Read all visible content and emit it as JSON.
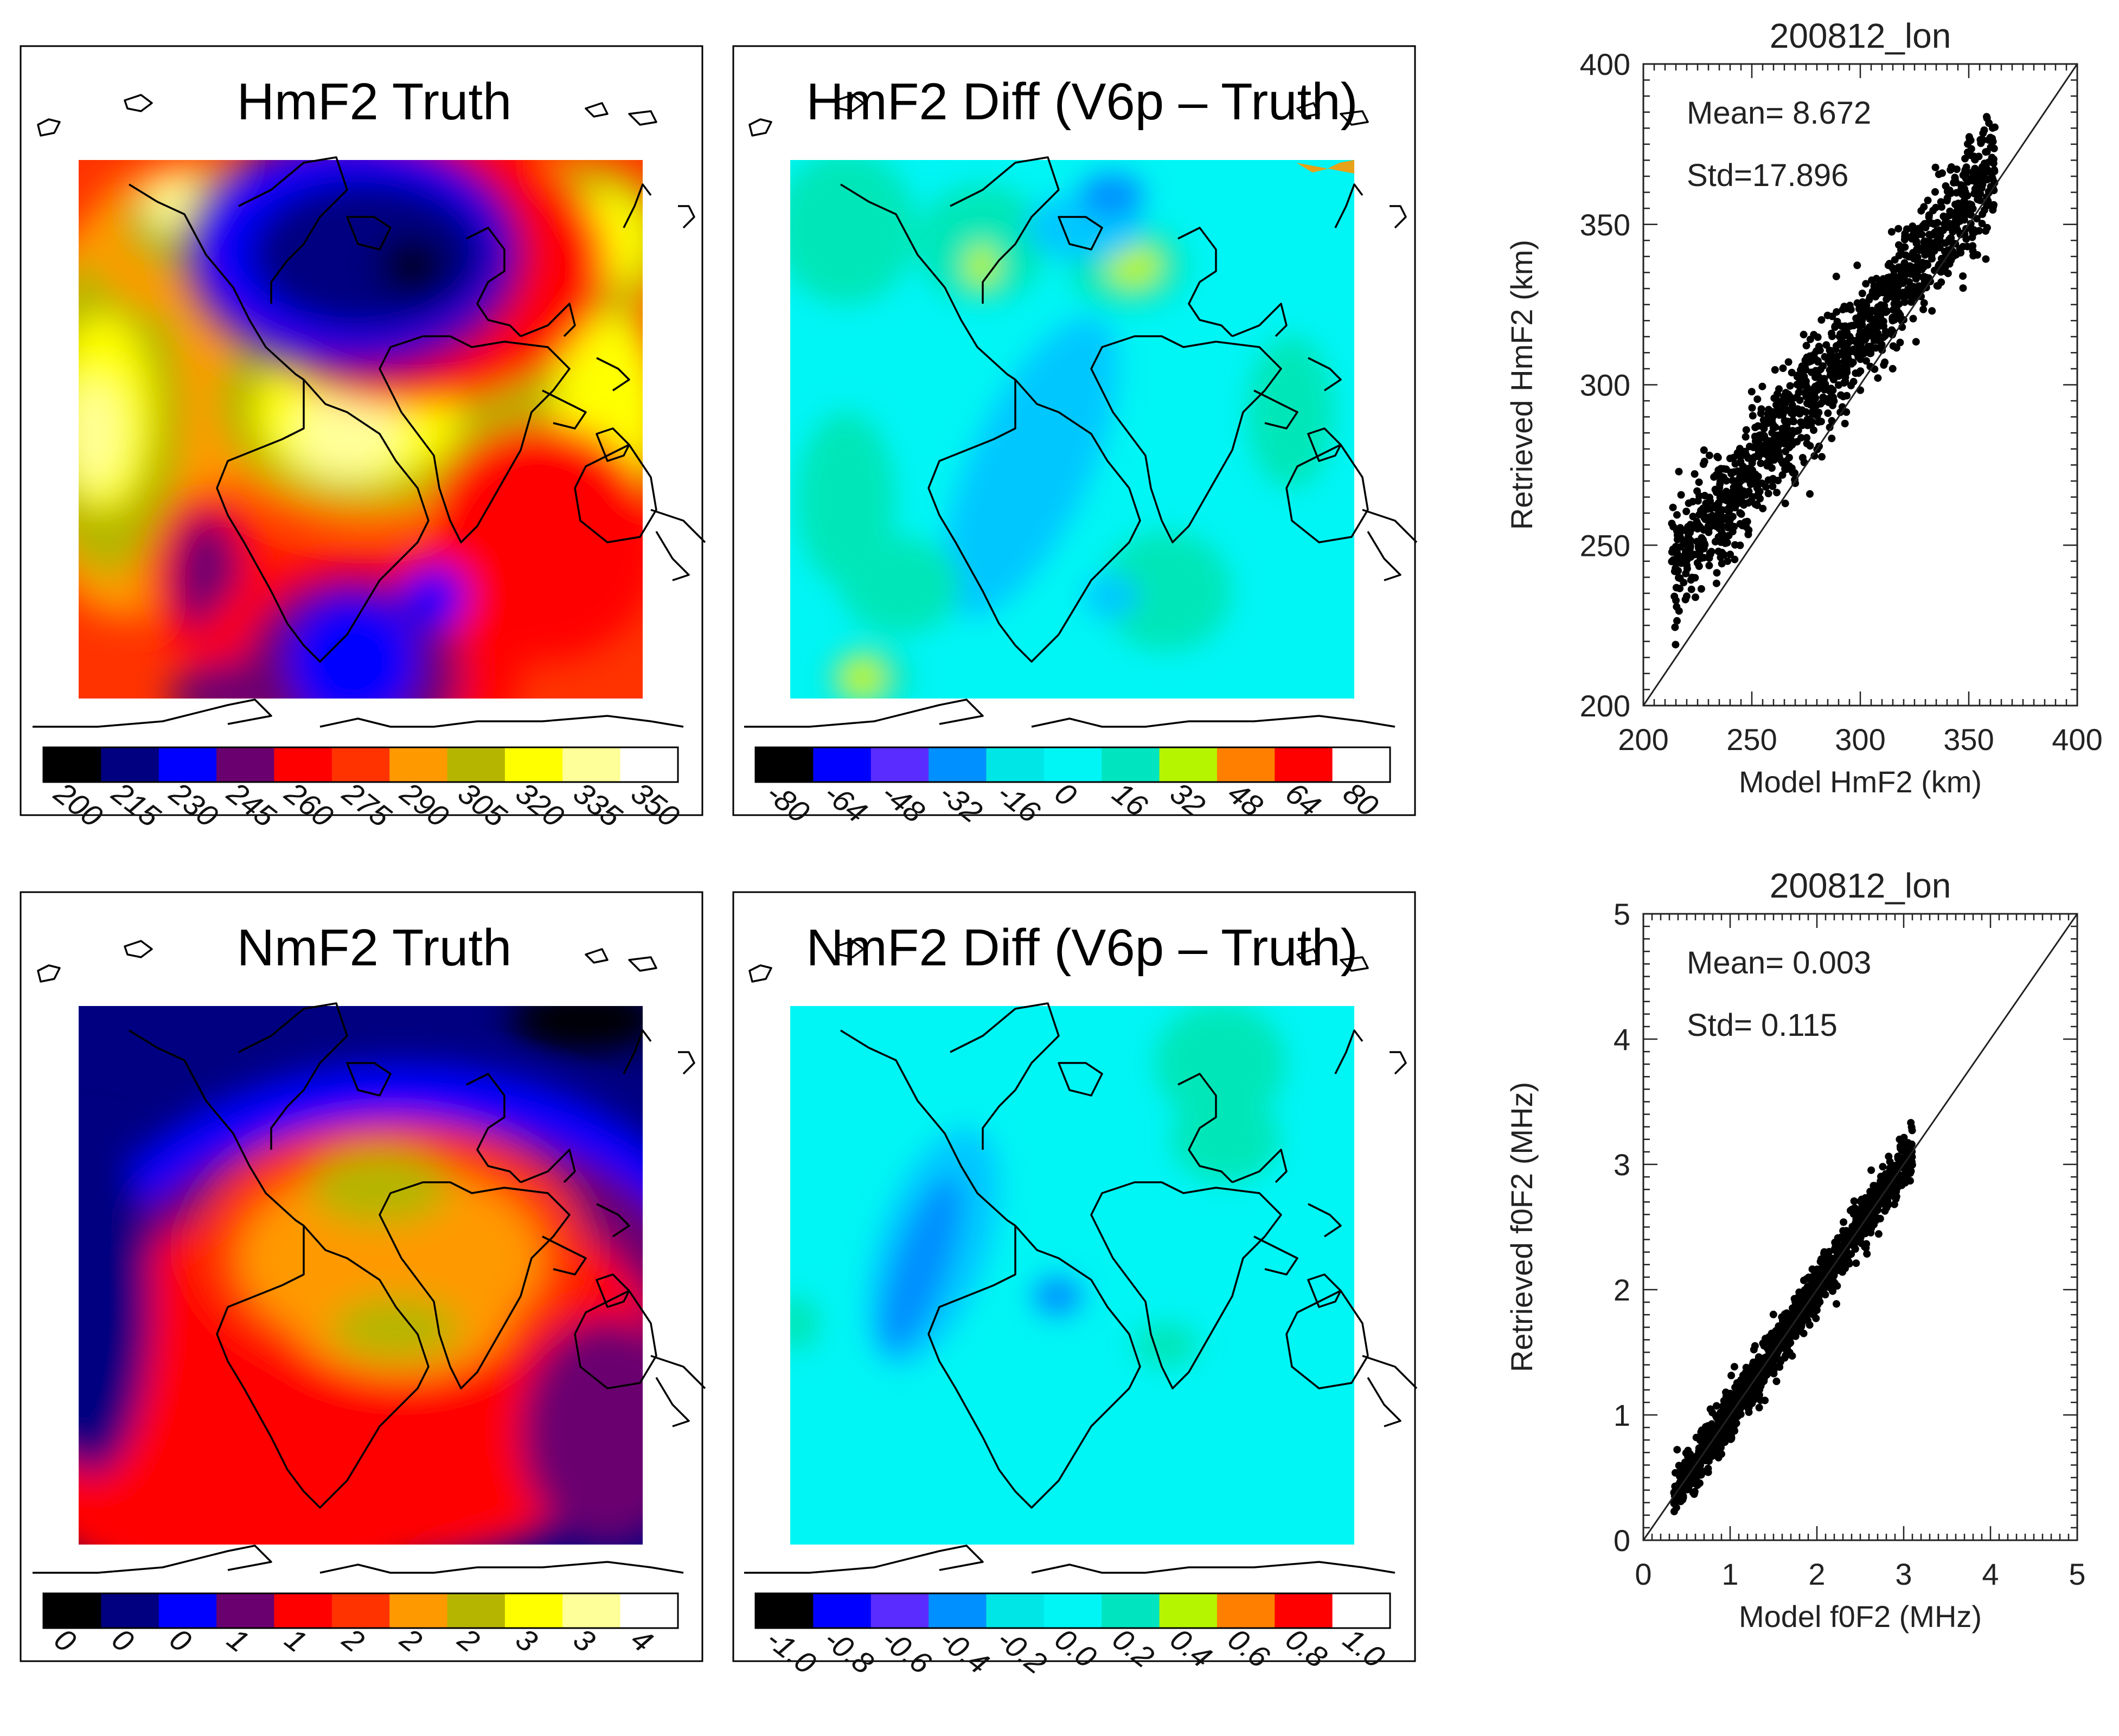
{
  "colors": {
    "truth_scale": [
      "#000000",
      "#000080",
      "#0000ff",
      "#6a006f",
      "#ff0000",
      "#ff3300",
      "#ff9900",
      "#b5b500",
      "#ffff00",
      "#ffff99",
      "#ffffff"
    ],
    "diff_scale": [
      "#000000",
      "#0000ff",
      "#5a2cff",
      "#0090ff",
      "#00e6e6",
      "#00f5f5",
      "#00e5c0",
      "#b5f500",
      "#ff8000",
      "#ff0000",
      "#ffffff"
    ],
    "coast": "#000000"
  },
  "maps": {
    "hmf2_truth": {
      "title": "HmF2 Truth",
      "scale": "truth",
      "ticks": [
        "200",
        "215",
        "230",
        "245",
        "260",
        "275",
        "290",
        "305",
        "320",
        "335",
        "350"
      ]
    },
    "hmf2_diff": {
      "title": "HmF2 Diff (V6p – Truth)",
      "scale": "diff",
      "ticks": [
        "-80",
        "-64",
        "-48",
        "-32",
        "-16",
        "0",
        "16",
        "32",
        "48",
        "64",
        "80"
      ]
    },
    "nmf2_truth": {
      "title": "NmF2 Truth",
      "scale": "truth",
      "ticks": [
        "0",
        "0",
        "0",
        "1",
        "1",
        "2",
        "2",
        "2",
        "3",
        "3",
        "4"
      ]
    },
    "nmf2_diff": {
      "title": "NmF2 Diff (V6p – Truth)",
      "scale": "diff",
      "ticks": [
        "-1.0",
        "-0.8",
        "-0.6",
        "-0.4",
        "-0.2",
        "0.0",
        "0.2",
        "0.4",
        "0.6",
        "0.8",
        "1.0"
      ]
    }
  },
  "chart_data": [
    {
      "type": "scatter",
      "title": "200812_lon",
      "xlabel": "Model HmF2 (km)",
      "ylabel": "Retrieved HmF2 (km)",
      "xlim": [
        200,
        400
      ],
      "ylim": [
        200,
        400
      ],
      "xticks": [
        "200",
        "250",
        "300",
        "350",
        "400"
      ],
      "yticks": [
        "200",
        "250",
        "300",
        "350",
        "400"
      ],
      "stats": {
        "mean": "Mean= 8.672",
        "std": "Std=17.896"
      },
      "reference_line": "y = x",
      "cloud": {
        "x_range": [
          213,
          362
        ],
        "fit_slope": 0.84,
        "fit_intercept": 63.6,
        "y_spread": 9,
        "n_points": 1300
      }
    },
    {
      "type": "scatter",
      "title": "200812_lon",
      "xlabel": "Model f0F2 (MHz)",
      "ylabel": "Retrieved f0F2 (MHz)",
      "xlim": [
        0,
        5
      ],
      "ylim": [
        0,
        5
      ],
      "xticks": [
        "0",
        "1",
        "2",
        "3",
        "4",
        "5"
      ],
      "yticks": [
        "0",
        "1",
        "2",
        "3",
        "4",
        "5"
      ],
      "stats": {
        "mean": "Mean= 0.003",
        "std": "Std= 0.115"
      },
      "reference_line": "y = x",
      "cloud": {
        "x_range": [
          0.35,
          3.1
        ],
        "fit_slope": 1.0,
        "fit_intercept": 0.0,
        "y_spread": 0.1,
        "n_points": 1300
      }
    }
  ]
}
